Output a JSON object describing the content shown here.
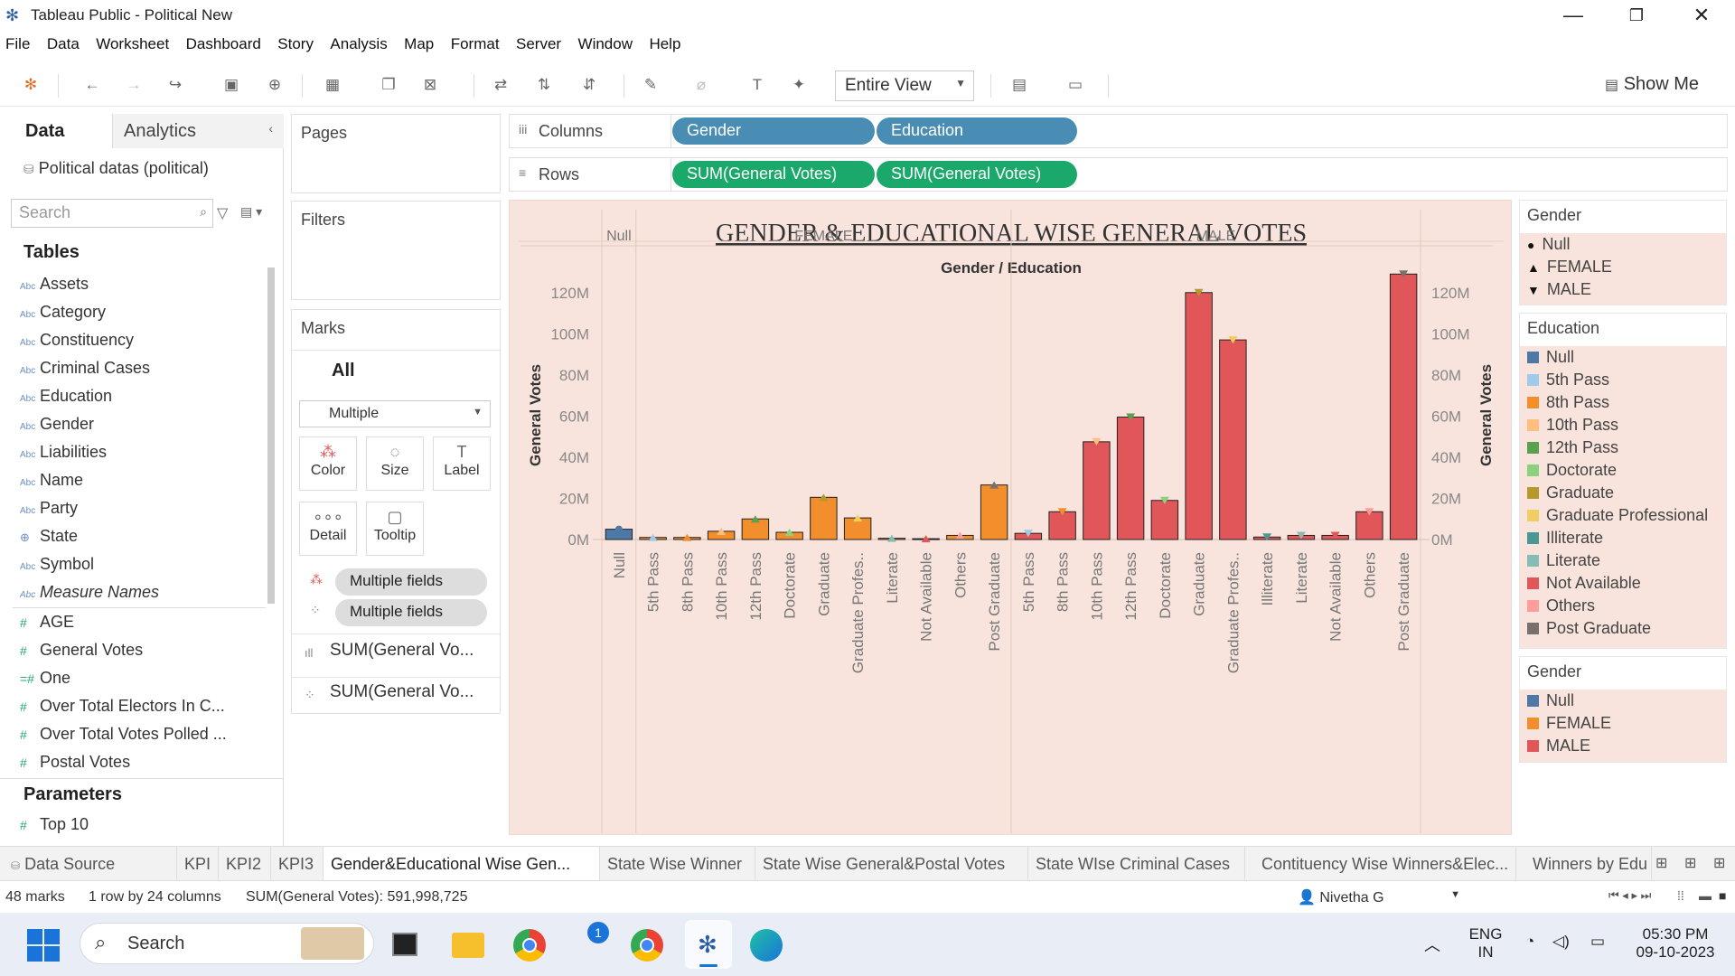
{
  "window": {
    "title": "Tableau Public - Political New"
  },
  "menu": [
    "File",
    "Data",
    "Worksheet",
    "Dashboard",
    "Story",
    "Analysis",
    "Map",
    "Format",
    "Server",
    "Window",
    "Help"
  ],
  "toolbar": {
    "view_select": "Entire View",
    "show_me": "Show Me"
  },
  "left_pane": {
    "tab_data": "Data",
    "tab_analytics": "Analytics",
    "datasource": "Political datas (political)",
    "search_placeholder": "Search",
    "tables_heading": "Tables",
    "dimensions": [
      "Assets",
      "Category",
      "Constituency",
      "Criminal Cases",
      "Education",
      "Gender",
      "Liabilities",
      "Name",
      "Party",
      "State",
      "Symbol",
      "Measure Names"
    ],
    "measures": [
      "AGE",
      "General Votes",
      "One",
      "Over Total Electors  In C...",
      "Over Total Votes Polled  ...",
      "Postal Votes"
    ],
    "parameters_heading": "Parameters",
    "parameters": [
      "Top 10"
    ]
  },
  "pages": {
    "title": "Pages"
  },
  "filters": {
    "title": "Filters"
  },
  "marks": {
    "title": "Marks",
    "all": "All",
    "type": "Multiple",
    "buttons": [
      "Color",
      "Size",
      "Label",
      "Detail",
      "Tooltip"
    ],
    "pills": [
      "Multiple fields",
      "Multiple fields"
    ],
    "measures": [
      "SUM(General Vo...",
      "SUM(General Vo..."
    ]
  },
  "shelves": {
    "columns_label": "Columns",
    "rows_label": "Rows",
    "columns": [
      "Gender",
      "Education"
    ],
    "rows": [
      "SUM(General Votes)",
      "SUM(General Votes)"
    ]
  },
  "chart_data": {
    "type": "bar",
    "title": "GENDER & EDUCATIONAL WISE GENERAL VOTES",
    "header": "Gender / Education",
    "groups": [
      "Null",
      "FEMALE",
      "MALE"
    ],
    "ylabel": "General Votes",
    "ylabel_right": "General Votes",
    "ylim": [
      0,
      130
    ],
    "y_unit": "M",
    "yticks": [
      "0M",
      "20M",
      "40M",
      "60M",
      "80M",
      "100M",
      "120M"
    ],
    "colors": {
      "Null": "#4e79a7",
      "FEMALE": "#f28e2b",
      "MALE": "#e15759"
    },
    "bars": [
      {
        "group": "Null",
        "category": "Null",
        "value": 5
      },
      {
        "group": "FEMALE",
        "category": "5th Pass",
        "value": 1
      },
      {
        "group": "FEMALE",
        "category": "8th Pass",
        "value": 1
      },
      {
        "group": "FEMALE",
        "category": "10th Pass",
        "value": 4
      },
      {
        "group": "FEMALE",
        "category": "12th Pass",
        "value": 10
      },
      {
        "group": "FEMALE",
        "category": "Doctorate",
        "value": 3.5
      },
      {
        "group": "FEMALE",
        "category": "Graduate",
        "value": 20.5
      },
      {
        "group": "FEMALE",
        "category": "Graduate Profes..",
        "value": 10.5
      },
      {
        "group": "FEMALE",
        "category": "Literate",
        "value": 0.6
      },
      {
        "group": "FEMALE",
        "category": "Not Available",
        "value": 0.4
      },
      {
        "group": "FEMALE",
        "category": "Others",
        "value": 2
      },
      {
        "group": "FEMALE",
        "category": "Post Graduate",
        "value": 26.5
      },
      {
        "group": "MALE",
        "category": "5th Pass",
        "value": 3
      },
      {
        "group": "MALE",
        "category": "8th Pass",
        "value": 13.5
      },
      {
        "group": "MALE",
        "category": "10th Pass",
        "value": 47.5
      },
      {
        "group": "MALE",
        "category": "12th Pass",
        "value": 59.5
      },
      {
        "group": "MALE",
        "category": "Doctorate",
        "value": 19
      },
      {
        "group": "MALE",
        "category": "Graduate",
        "value": 120
      },
      {
        "group": "MALE",
        "category": "Graduate Profes..",
        "value": 97
      },
      {
        "group": "MALE",
        "category": "Illiterate",
        "value": 1.2
      },
      {
        "group": "MALE",
        "category": "Literate",
        "value": 2
      },
      {
        "group": "MALE",
        "category": "Not Available",
        "value": 2
      },
      {
        "group": "MALE",
        "category": "Others",
        "value": 13.5
      },
      {
        "group": "MALE",
        "category": "Post Graduate",
        "value": 129
      }
    ]
  },
  "legends": {
    "gender_shape": {
      "title": "Gender",
      "items": [
        {
          "label": "Null",
          "glyph": "●"
        },
        {
          "label": "FEMALE",
          "glyph": "▲"
        },
        {
          "label": "MALE",
          "glyph": "▼"
        }
      ]
    },
    "education": {
      "title": "Education",
      "items": [
        {
          "label": "Null",
          "color": "#4e79a7"
        },
        {
          "label": "5th Pass",
          "color": "#a0cbe8"
        },
        {
          "label": "8th Pass",
          "color": "#f28e2b"
        },
        {
          "label": "10th Pass",
          "color": "#ffbe7d"
        },
        {
          "label": "12th Pass",
          "color": "#59a14f"
        },
        {
          "label": "Doctorate",
          "color": "#8cd17d"
        },
        {
          "label": "Graduate",
          "color": "#b6992d"
        },
        {
          "label": "Graduate Professional",
          "color": "#f1ce63"
        },
        {
          "label": "Illiterate",
          "color": "#499894"
        },
        {
          "label": "Literate",
          "color": "#86bcb6"
        },
        {
          "label": "Not Available",
          "color": "#e15759"
        },
        {
          "label": "Others",
          "color": "#ff9d9a"
        },
        {
          "label": "Post Graduate",
          "color": "#79706e"
        }
      ]
    },
    "gender_color": {
      "title": "Gender",
      "items": [
        {
          "label": "Null",
          "color": "#4e79a7"
        },
        {
          "label": "FEMALE",
          "color": "#f28e2b"
        },
        {
          "label": "MALE",
          "color": "#e15759"
        }
      ]
    }
  },
  "sheet_tabs": [
    "Data Source",
    "KPI",
    "KPI2",
    "KPI3",
    "Gender&Educational Wise Gen...",
    "State Wise Winner",
    "State Wise General&Postal Votes",
    "State WIse Criminal Cases",
    "Contituency Wise Winners&Elec...",
    "Winners by Edu"
  ],
  "active_tab_index": 4,
  "status": {
    "marks": "48 marks",
    "dims": "1 row by 24 columns",
    "sum": "SUM(General Votes): 591,998,725",
    "user": "Nivetha G"
  },
  "taskbar": {
    "search": "Search",
    "badge": "1",
    "lang": "ENG",
    "region": "IN",
    "time": "05:30 PM",
    "date": "09-10-2023"
  }
}
